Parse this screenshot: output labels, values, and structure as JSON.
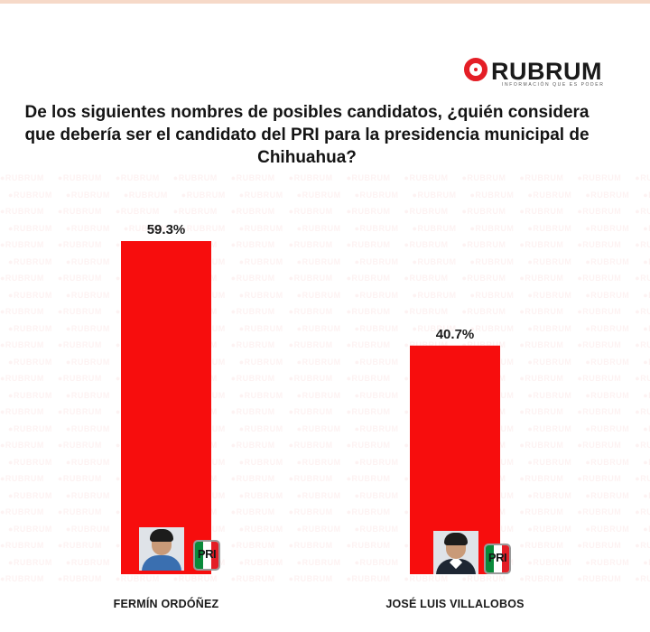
{
  "brand": {
    "name": "RUBRUM",
    "tagline": "INFORMACIÓN QUE ES PODER",
    "accent": "#e41e26"
  },
  "chart_data": {
    "type": "bar",
    "title": "De los siguientes nombres de posibles candidatos, ¿quién considera que debería ser el candidato del PRI para la presidencia municipal de Chihuahua?",
    "categories": [
      "FERMÍN ORDÓÑEZ",
      "JOSÉ LUIS VILLALOBOS"
    ],
    "values": [
      59.3,
      40.7
    ],
    "value_labels": [
      "59.3%",
      "40.7%"
    ],
    "ylim": [
      0,
      72
    ],
    "grid": false,
    "bar_color": "#f70d0d",
    "party_logo": "PRI"
  }
}
